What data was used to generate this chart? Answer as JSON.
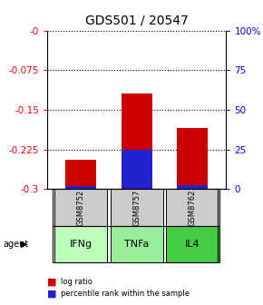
{
  "title": "GDS501 / 20547",
  "samples": [
    "GSM8752",
    "GSM8757",
    "GSM8762"
  ],
  "agents": [
    "IFNg",
    "TNFa",
    "IL4"
  ],
  "log_ratios": [
    -0.245,
    -0.12,
    -0.185
  ],
  "percentile_ranks_scaled": [
    -0.294,
    -0.225,
    -0.292
  ],
  "ylim_left": [
    -0.3,
    0.0
  ],
  "ylim_right": [
    0,
    100
  ],
  "yticks_left": [
    0.0,
    -0.075,
    -0.15,
    -0.225,
    -0.3
  ],
  "ytick_labels_left": [
    "-0",
    "-0.075",
    "-0.15",
    "-0.225",
    "-0.3"
  ],
  "yticks_right": [
    0,
    25,
    50,
    75,
    100
  ],
  "ytick_labels_right": [
    "0",
    "25",
    "50",
    "75",
    "100%"
  ],
  "bar_color_red": "#cc0000",
  "bar_color_blue": "#2222cc",
  "agent_colors": [
    "#bbffbb",
    "#99ee99",
    "#44cc44"
  ],
  "sample_bg_color": "#cccccc",
  "legend_red": "log ratio",
  "legend_blue": "percentile rank within the sample",
  "bar_width": 0.55
}
